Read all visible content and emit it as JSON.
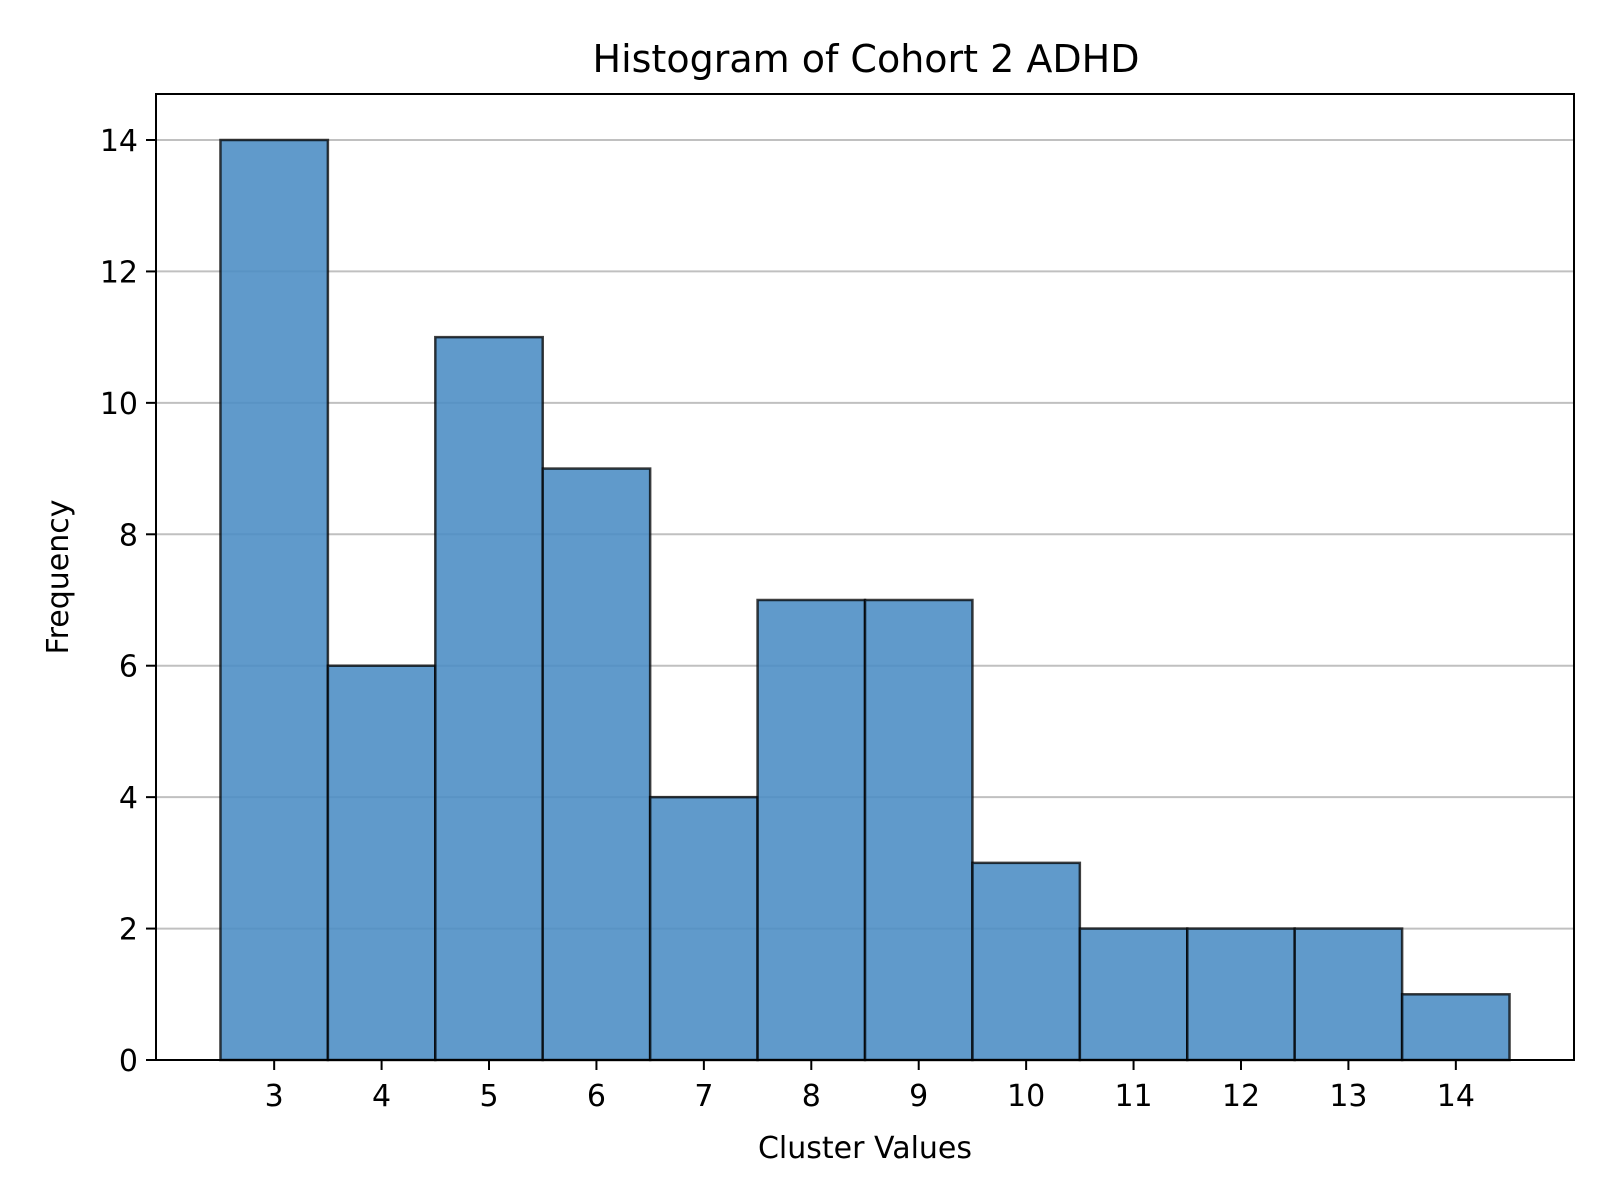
{
  "chart_data": {
    "type": "bar",
    "title": "Histogram of Cohort 2 ADHD",
    "xlabel": "Cluster Values",
    "ylabel": "Frequency",
    "categories": [
      "3",
      "4",
      "5",
      "6",
      "7",
      "8",
      "9",
      "10",
      "11",
      "12",
      "13",
      "14"
    ],
    "x": [
      3,
      4,
      5,
      6,
      7,
      8,
      9,
      10,
      11,
      12,
      13,
      14
    ],
    "values": [
      14,
      6,
      11,
      9,
      4,
      7,
      7,
      3,
      2,
      2,
      2,
      1
    ],
    "bin_width": 1,
    "xlim": [
      1.9,
      15.1
    ],
    "ylim": [
      0,
      14.7
    ],
    "yticks": [
      0,
      2,
      4,
      6,
      8,
      10,
      12,
      14
    ],
    "grid": "y-axis only",
    "colors": {
      "bar_fill": "#4a8cc4",
      "bar_edge": "#000000",
      "grid": "#c0c0c0"
    }
  }
}
